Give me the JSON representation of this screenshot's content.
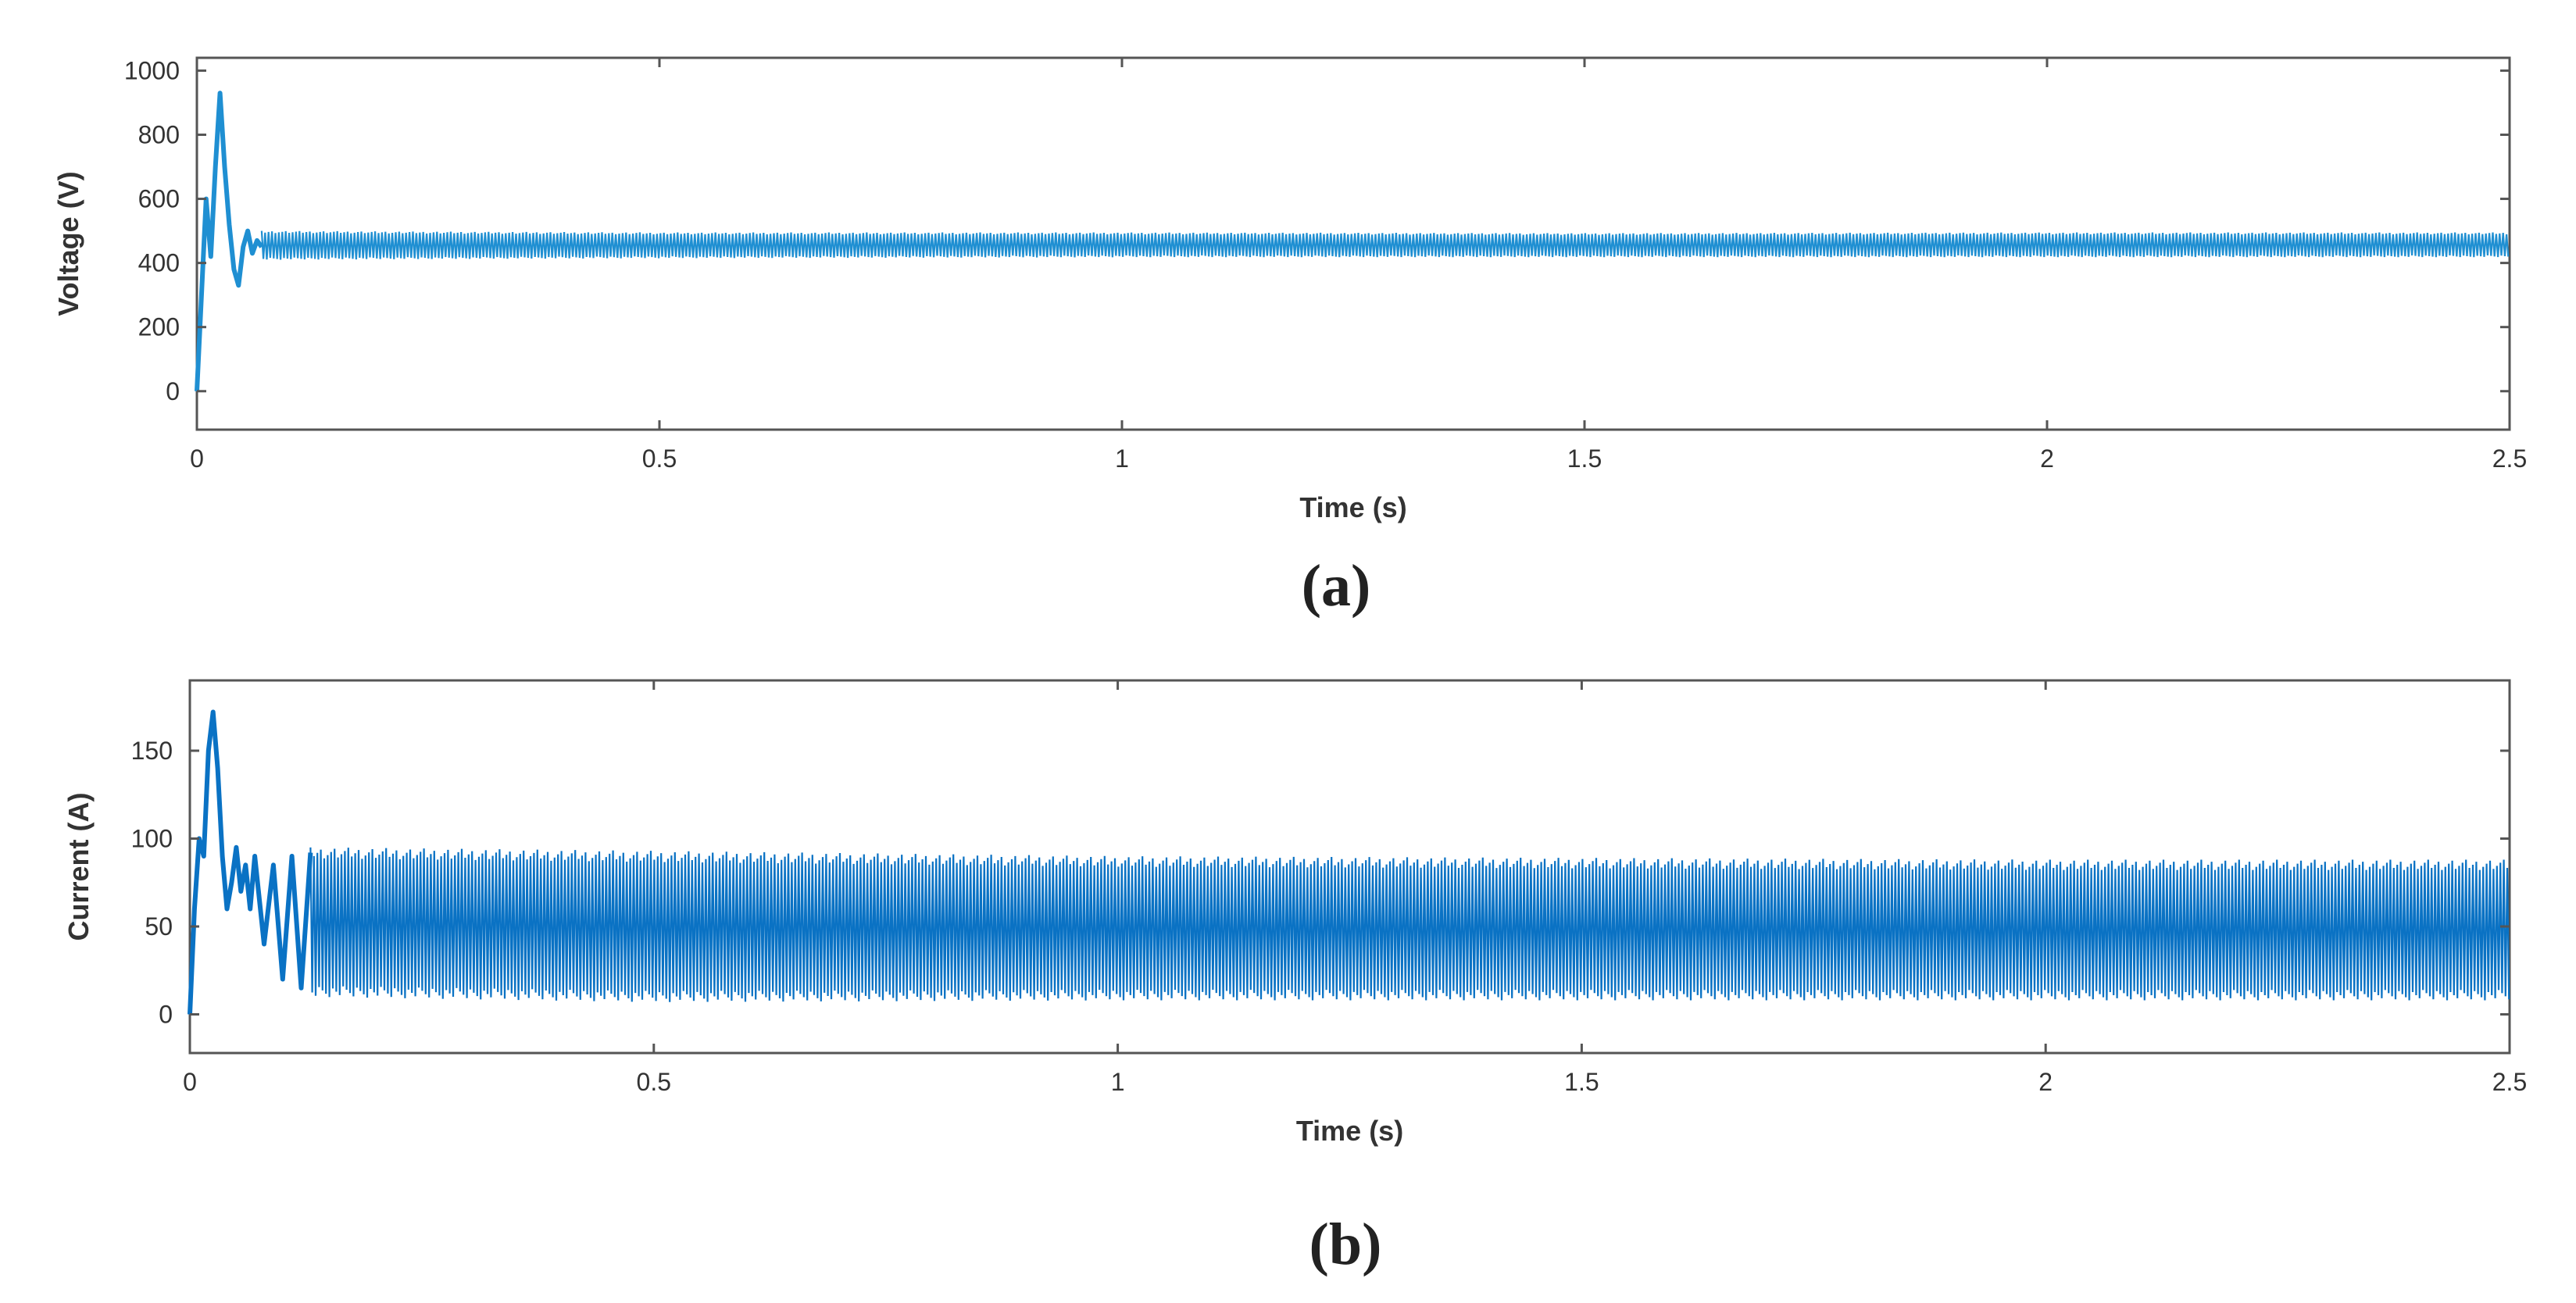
{
  "chart_data": [
    {
      "type": "line",
      "caption": "(a)",
      "xlabel": "Time (s)",
      "ylabel": "Voltage (V)",
      "xlim": [
        0,
        2.5
      ],
      "ylim": [
        -120,
        1040
      ],
      "xticks": [
        0,
        0.5,
        1,
        1.5,
        2,
        2.5
      ],
      "xtick_labels": [
        "0",
        "0.5",
        "1",
        "1.5",
        "2",
        "2.5"
      ],
      "yticks": [
        0,
        200,
        400,
        600,
        800,
        1000
      ],
      "ytick_labels": [
        "0",
        "200",
        "400",
        "600",
        "800",
        "1000"
      ],
      "grid": false,
      "color": "#1f8fd2",
      "series": [
        {
          "transient": [
            [
              0,
              0
            ],
            [
              0.005,
              300
            ],
            [
              0.01,
              600
            ],
            [
              0.015,
              420
            ],
            [
              0.02,
              700
            ],
            [
              0.025,
              930
            ],
            [
              0.03,
              700
            ],
            [
              0.035,
              520
            ],
            [
              0.04,
              380
            ],
            [
              0.045,
              330
            ],
            [
              0.05,
              450
            ],
            [
              0.055,
              500
            ],
            [
              0.06,
              430
            ],
            [
              0.065,
              470
            ],
            [
              0.07,
              450
            ]
          ],
          "envelope_upper": [
            [
              0.07,
              500
            ],
            [
              0.5,
              495
            ],
            [
              1.0,
              495
            ],
            [
              1.5,
              493
            ],
            [
              2.0,
              495
            ],
            [
              2.5,
              495
            ]
          ],
          "envelope_lower": [
            [
              0.07,
              410
            ],
            [
              0.5,
              415
            ],
            [
              1.0,
              418
            ],
            [
              1.5,
              418
            ],
            [
              2.0,
              418
            ],
            [
              2.5,
              418
            ]
          ]
        }
      ]
    },
    {
      "type": "line",
      "caption": "(b)",
      "xlabel": "Time  (s)",
      "ylabel": "Current (A)",
      "xlim": [
        0,
        2.5
      ],
      "ylim": [
        -22,
        190
      ],
      "xticks": [
        0,
        0.5,
        1,
        1.5,
        2,
        2.5
      ],
      "xtick_labels": [
        "0",
        "0.5",
        "1",
        "1.5",
        "2",
        "2.5"
      ],
      "yticks": [
        0,
        50,
        100,
        150
      ],
      "ytick_labels": [
        "0",
        "50",
        "100",
        "150"
      ],
      "grid": false,
      "color": "#0a72c4",
      "series": [
        {
          "transient": [
            [
              0,
              0
            ],
            [
              0.005,
              60
            ],
            [
              0.01,
              100
            ],
            [
              0.015,
              90
            ],
            [
              0.02,
              150
            ],
            [
              0.025,
              172
            ],
            [
              0.03,
              140
            ],
            [
              0.035,
              90
            ],
            [
              0.04,
              60
            ],
            [
              0.045,
              75
            ],
            [
              0.05,
              95
            ],
            [
              0.055,
              70
            ],
            [
              0.06,
              85
            ],
            [
              0.065,
              60
            ],
            [
              0.07,
              90
            ],
            [
              0.08,
              40
            ],
            [
              0.09,
              85
            ],
            [
              0.1,
              20
            ],
            [
              0.11,
              90
            ],
            [
              0.12,
              15
            ],
            [
              0.13,
              92
            ]
          ],
          "envelope_upper": [
            [
              0.13,
              95
            ],
            [
              0.5,
              93
            ],
            [
              1.0,
              90
            ],
            [
              1.5,
              89
            ],
            [
              2.0,
              88
            ],
            [
              2.5,
              88
            ]
          ],
          "envelope_lower": [
            [
              0.13,
              10
            ],
            [
              0.5,
              7
            ],
            [
              1.0,
              8
            ],
            [
              1.5,
              8
            ],
            [
              2.0,
              8
            ],
            [
              2.5,
              8
            ]
          ]
        }
      ]
    }
  ]
}
